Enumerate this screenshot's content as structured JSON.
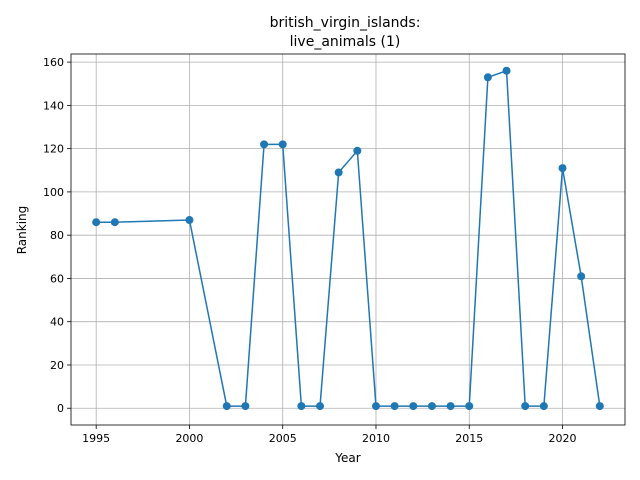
{
  "chart_data": {
    "type": "line",
    "title_lines": [
      "british_virgin_islands:",
      "live_animals (1)"
    ],
    "xlabel": "Year",
    "ylabel": "Ranking",
    "x": [
      1995,
      1996,
      2000,
      2002,
      2003,
      2004,
      2005,
      2006,
      2007,
      2008,
      2009,
      2010,
      2011,
      2012,
      2013,
      2014,
      2015,
      2016,
      2017,
      2018,
      2019,
      2020,
      2021,
      2022
    ],
    "y": [
      86,
      86,
      87,
      1,
      1,
      122,
      122,
      1,
      1,
      109,
      119,
      1,
      1,
      1,
      1,
      1,
      1,
      153,
      156,
      1,
      1,
      111,
      61,
      1
    ],
    "xlim": [
      1993.65,
      2023.35
    ],
    "ylim": [
      -7.75,
      163.75
    ],
    "xticks": [
      1995,
      2000,
      2005,
      2010,
      2015,
      2020
    ],
    "yticks": [
      0,
      20,
      40,
      60,
      80,
      100,
      120,
      140,
      160
    ],
    "grid": true,
    "legend": false,
    "line_color": "#1f77b4"
  }
}
